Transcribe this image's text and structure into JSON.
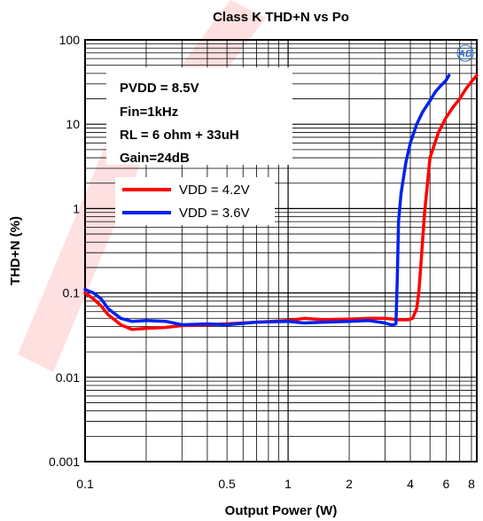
{
  "chart_data": {
    "type": "line",
    "title": "Class K THD+N vs Po",
    "xlabel": "Output Power (W)",
    "ylabel": "THD+N (%)",
    "x_scale": "log",
    "y_scale": "log",
    "xlim": [
      0.1,
      8.5
    ],
    "ylim": [
      0.001,
      100
    ],
    "x_ticks": [
      0.1,
      0.5,
      1,
      2,
      4,
      6,
      8
    ],
    "x_tick_labels": [
      "0.1",
      "0.5",
      "1",
      "2",
      "4",
      "6",
      "8"
    ],
    "y_ticks": [
      0.001,
      0.01,
      0.1,
      1,
      10,
      100
    ],
    "y_tick_labels": [
      "0.001",
      "0.01",
      "0.1",
      "1",
      "10",
      "100"
    ],
    "grid": true,
    "annotations": [
      "PVDD = 8.5V",
      "Fin=1kHz",
      "RL = 6 ohm + 33uH",
      "Gain=24dB"
    ],
    "logo_text": "AD",
    "legend_position": "upper-left",
    "series": [
      {
        "name": "VDD = 4.2V",
        "color": "#ff0000",
        "x": [
          0.1,
          0.11,
          0.12,
          0.13,
          0.15,
          0.17,
          0.2,
          0.25,
          0.3,
          0.4,
          0.5,
          0.7,
          1.0,
          1.2,
          1.5,
          2.0,
          2.5,
          3.0,
          3.5,
          3.9,
          4.1,
          4.3,
          4.4,
          4.5,
          4.7,
          5.0,
          5.5,
          6.0,
          6.5,
          7.0,
          7.5,
          8.0,
          8.5
        ],
        "y": [
          0.1,
          0.085,
          0.07,
          0.055,
          0.042,
          0.037,
          0.038,
          0.039,
          0.041,
          0.042,
          0.043,
          0.045,
          0.047,
          0.05,
          0.048,
          0.049,
          0.05,
          0.05,
          0.048,
          0.048,
          0.05,
          0.065,
          0.1,
          0.2,
          0.9,
          4,
          8,
          12,
          16,
          20,
          26,
          32,
          38
        ]
      },
      {
        "name": "VDD = 3.6V",
        "color": "#0022ee",
        "x": [
          0.1,
          0.11,
          0.12,
          0.13,
          0.15,
          0.17,
          0.2,
          0.25,
          0.3,
          0.4,
          0.5,
          0.7,
          1.0,
          1.2,
          1.5,
          2.0,
          2.5,
          3.0,
          3.2,
          3.3,
          3.4,
          3.45,
          3.5,
          3.6,
          3.8,
          4.0,
          4.3,
          4.6,
          5.0,
          5.3,
          5.6,
          6.0,
          6.2
        ],
        "y": [
          0.11,
          0.1,
          0.085,
          0.065,
          0.05,
          0.046,
          0.047,
          0.046,
          0.042,
          0.043,
          0.042,
          0.045,
          0.046,
          0.044,
          0.045,
          0.046,
          0.047,
          0.044,
          0.042,
          0.042,
          0.043,
          0.15,
          0.7,
          1.5,
          3.5,
          6,
          10,
          14,
          19,
          24,
          28,
          33,
          38
        ]
      }
    ]
  }
}
